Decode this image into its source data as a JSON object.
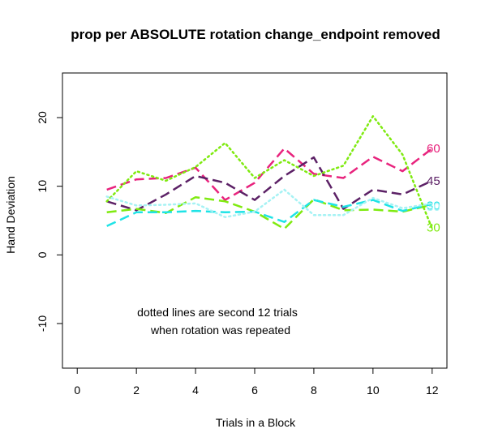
{
  "chart_data": {
    "type": "line",
    "title": "prop per ABSOLUTE rotation change_endpoint removed",
    "xlabel": "Trials in a Block",
    "ylabel": "Hand Deviation",
    "xlim": [
      -0.5,
      12.5
    ],
    "ylim": [
      -16.5,
      26.5
    ],
    "xticks": [
      0,
      2,
      4,
      6,
      8,
      10,
      12
    ],
    "yticks": [
      -10,
      0,
      10,
      20
    ],
    "grid": false,
    "legend": "none",
    "annotation": [
      "dotted lines are second 12 trials",
      "when rotation was repeated"
    ],
    "series": [
      {
        "name": "60",
        "color": "#e8237d",
        "style": "dashed",
        "x": [
          1,
          2,
          3,
          4,
          5,
          6,
          7,
          8,
          9,
          10,
          11,
          12
        ],
        "y": [
          9.5,
          11.0,
          11.2,
          12.7,
          8.0,
          10.5,
          15.5,
          11.8,
          11.2,
          14.3,
          12.2,
          15.5
        ]
      },
      {
        "name": "45",
        "color": "#5c2166",
        "style": "dashed",
        "x": [
          1,
          2,
          3,
          4,
          5,
          6,
          7,
          8,
          9,
          10,
          11,
          12
        ],
        "y": [
          7.8,
          6.5,
          8.8,
          11.5,
          10.5,
          8.0,
          11.5,
          14.2,
          6.7,
          9.5,
          8.8,
          10.8
        ]
      },
      {
        "name": "30",
        "color": "#7fea10",
        "style": "dashed",
        "x": [
          1,
          2,
          3,
          4,
          5,
          6,
          7,
          8,
          9,
          10,
          11,
          12
        ],
        "y": [
          6.2,
          6.7,
          6.1,
          8.4,
          7.8,
          6.3,
          3.8,
          8.1,
          6.5,
          6.6,
          6.3,
          7.3
        ]
      },
      {
        "name": "30",
        "color": "#1fe3e6",
        "style": "dashed",
        "x": [
          1,
          2,
          3,
          4,
          5,
          6,
          7,
          8,
          9,
          10,
          11,
          12
        ],
        "y": [
          4.2,
          6.2,
          6.2,
          6.4,
          6.2,
          6.3,
          4.8,
          8.0,
          7.0,
          8.0,
          6.4,
          7.4
        ]
      },
      {
        "name": "",
        "color": "#7fea10",
        "style": "dotted",
        "x": [
          1,
          2,
          3,
          4,
          5,
          6,
          7,
          8,
          9,
          10,
          11,
          12
        ],
        "y": [
          7.8,
          12.2,
          10.8,
          12.8,
          16.3,
          11.2,
          13.8,
          11.5,
          13.0,
          20.2,
          14.6,
          3.8
        ]
      },
      {
        "name": "",
        "color": "#a6f2f4",
        "style": "dotted",
        "x": [
          1,
          2,
          3,
          4,
          5,
          6,
          7,
          8,
          9,
          10,
          11,
          12
        ],
        "y": [
          8.5,
          7.2,
          7.3,
          7.5,
          5.5,
          6.3,
          9.5,
          5.8,
          5.8,
          8.3,
          6.8,
          7.5
        ]
      }
    ],
    "end_labels": [
      {
        "text": "60",
        "y": 15.5,
        "color": "#e8237d"
      },
      {
        "text": "45",
        "y": 10.8,
        "color": "#5c2166"
      },
      {
        "text": "30",
        "y": 7.2,
        "color": "#1fe3e6"
      },
      {
        "text": "30",
        "y": 7.0,
        "color": "#aaf4f6"
      },
      {
        "text": "30",
        "y": 4.0,
        "color": "#7fea10"
      }
    ]
  }
}
